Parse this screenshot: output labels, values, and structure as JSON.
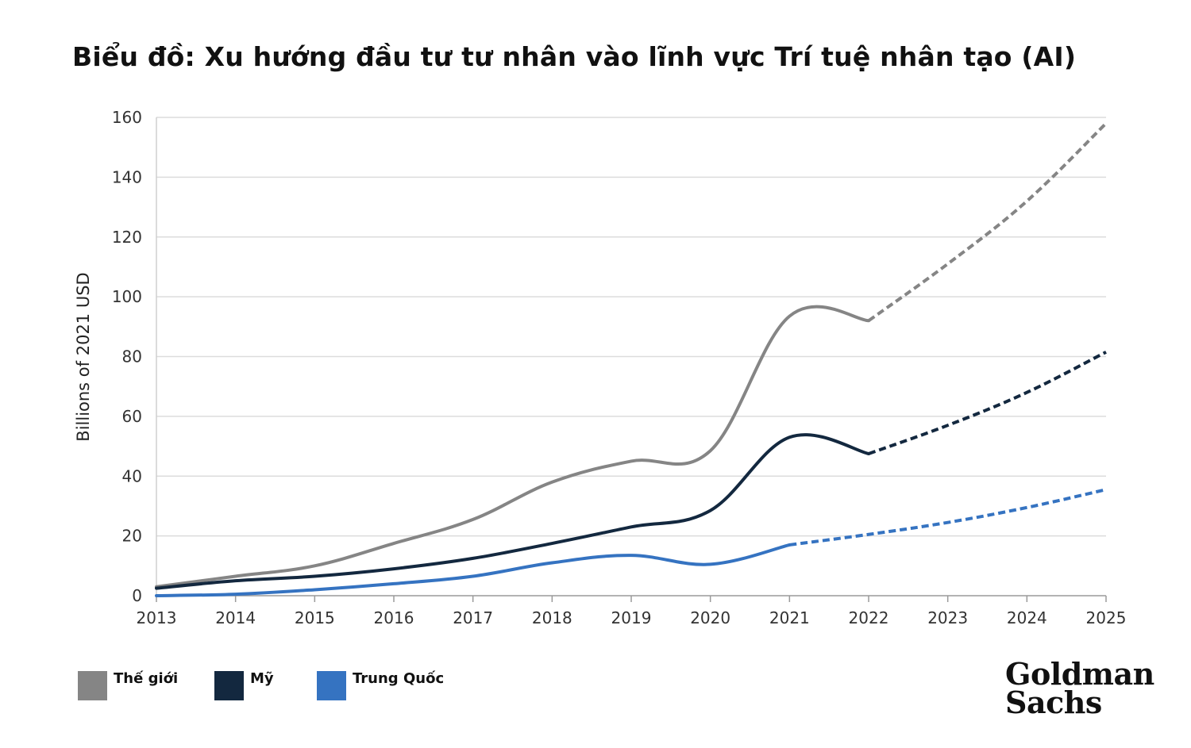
{
  "chart_data": {
    "type": "line",
    "title": "Biểu đồ: Xu hướng đầu tư tư nhân vào lĩnh vực Trí tuệ nhân tạo (AI)",
    "ylabel": "Billions of 2021 USD",
    "xlabel": "",
    "x": [
      2013,
      2014,
      2015,
      2016,
      2017,
      2018,
      2019,
      2020,
      2021,
      2022,
      2023,
      2024,
      2025
    ],
    "xlim": [
      2013,
      2025
    ],
    "ylim": [
      0,
      160
    ],
    "yticks": [
      0,
      20,
      40,
      60,
      80,
      100,
      120,
      140,
      160
    ],
    "grid": true,
    "legend_position": "bottom-left",
    "series": [
      {
        "name": "Thế giới",
        "color": "#858585",
        "values": [
          3,
          6.5,
          10,
          17.5,
          25.5,
          38,
          45,
          48.5,
          93.5,
          92,
          111,
          132,
          158
        ],
        "solid_until": 2022
      },
      {
        "name": "Mỹ",
        "color": "#13283f",
        "values": [
          2.5,
          5,
          6.5,
          9,
          12.5,
          17.5,
          23,
          28.5,
          53,
          47.5,
          57,
          68,
          81.5
        ],
        "solid_until": 2022
      },
      {
        "name": "Trung Quốc",
        "color": "#3573c1",
        "values": [
          0,
          0.5,
          2,
          4,
          6.5,
          11,
          13.5,
          10.5,
          17,
          20.5,
          24.5,
          29.5,
          35.5
        ],
        "solid_until": 2021
      }
    ]
  },
  "logo": {
    "line1": "Goldman",
    "line2": "Sachs"
  }
}
